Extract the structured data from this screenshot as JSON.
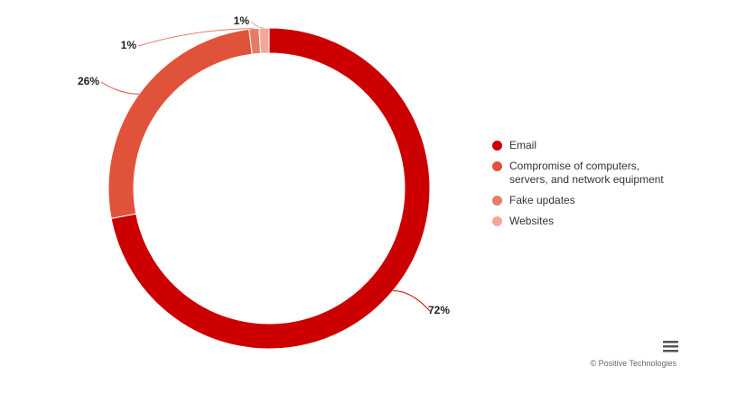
{
  "chart_data": {
    "type": "donut",
    "categories": [
      "Email",
      "Compromise of computers, servers, and network equipment",
      "Fake updates",
      "Websites"
    ],
    "values": [
      72,
      26,
      1,
      1
    ],
    "value_labels": [
      "72%",
      "26%",
      "1%",
      "1%"
    ],
    "colors": [
      "#cc0000",
      "#e0533a",
      "#e57d66",
      "#f2a898"
    ],
    "legend": "right"
  },
  "credit": "© Positive Technologies"
}
